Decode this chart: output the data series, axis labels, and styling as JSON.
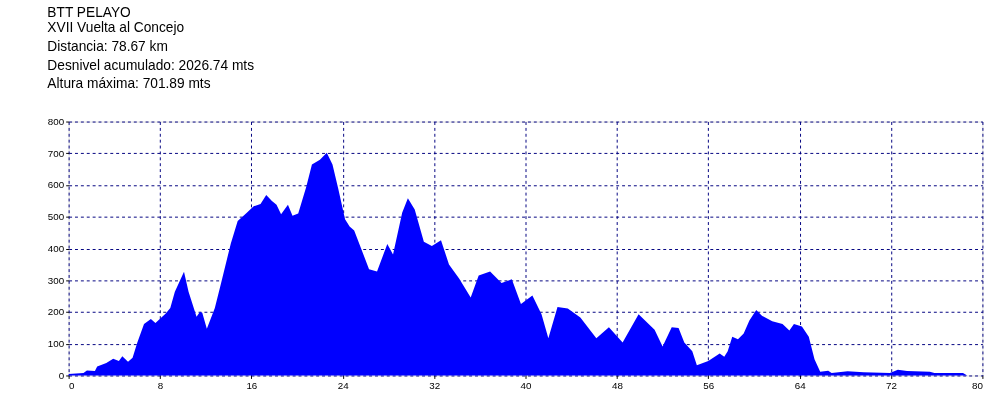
{
  "chart_data": {
    "type": "area",
    "title": "BTT PELAYO",
    "subtitle": "XVII Vuelta al Concejo",
    "annotations": [
      "Distancia: 78.67 km",
      "Desnivel acumulado: 2026.74 mts",
      "Altura máxima: 701.89 mts"
    ],
    "x": [
      0,
      1.3,
      1.6,
      2.3,
      2.5,
      3.3,
      3.9,
      4.4,
      4.7,
      5.2,
      5.6,
      6.0,
      6.6,
      7.2,
      7.6,
      8.5,
      8.9,
      9.3,
      10.1,
      10.5,
      11.2,
      11.5,
      11.7,
      12.1,
      12.8,
      13.3,
      14.2,
      14.8,
      15.6,
      16.2,
      16.8,
      17.3,
      17.8,
      18.2,
      18.6,
      19.2,
      19.6,
      20.1,
      20.8,
      21.3,
      22.0,
      22.6,
      23.1,
      23.6,
      24.2,
      24.6,
      25.0,
      26.3,
      27.0,
      27.9,
      28.4,
      29.2,
      29.7,
      30.3,
      31.1,
      31.8,
      32.6,
      33.3,
      34.2,
      35.2,
      35.9,
      36.9,
      37.9,
      38.8,
      39.6,
      40.6,
      41.4,
      42.0,
      42.8,
      43.7,
      44.8,
      46.2,
      47.3,
      48.5,
      49.9,
      51.3,
      52.0,
      52.8,
      53.4,
      53.9,
      54.6,
      55.0,
      56.0,
      57.0,
      57.4,
      57.7,
      58.1,
      58.6,
      59.1,
      59.6,
      60.2,
      60.7,
      61.6,
      62.5,
      63.1,
      63.5,
      64.2,
      64.8,
      65.3,
      65.8,
      66.5,
      66.8,
      68.2,
      69.6,
      71.9,
      72.6,
      73.4,
      75.4,
      75.8,
      78.3,
      78.67
    ],
    "values": [
      5,
      8,
      16,
      14,
      28,
      39,
      53,
      46,
      61,
      43,
      56,
      102,
      162,
      178,
      165,
      195,
      213,
      264,
      327,
      264,
      185,
      201,
      198,
      147,
      213,
      284,
      416,
      487,
      513,
      533,
      540,
      569,
      550,
      538,
      508,
      538,
      503,
      510,
      594,
      665,
      680,
      702,
      665,
      589,
      492,
      469,
      457,
      335,
      328,
      414,
      381,
      513,
      558,
      523,
      421,
      408,
      426,
      350,
      305,
      246,
      315,
      328,
      291,
      303,
      225,
      252,
      193,
      117,
      216,
      211,
      183,
      117,
      152,
      104,
      193,
      144,
      91,
      152,
      150,
      104,
      76,
      32,
      46,
      69,
      59,
      76,
      122,
      114,
      132,
      173,
      206,
      188,
      171,
      162,
      142,
      162,
      154,
      122,
      51,
      12,
      15,
      8,
      13,
      10,
      8,
      18,
      14,
      12,
      8,
      8,
      0
    ],
    "color": "#0000ff",
    "xlim": [
      0,
      80
    ],
    "xticks": [
      0,
      8,
      16,
      24,
      32,
      40,
      48,
      56,
      64,
      72,
      80
    ],
    "ylim": [
      0,
      800
    ],
    "yticks": [
      0,
      100,
      200,
      300,
      400,
      500,
      600,
      700,
      800
    ],
    "grid": true
  }
}
